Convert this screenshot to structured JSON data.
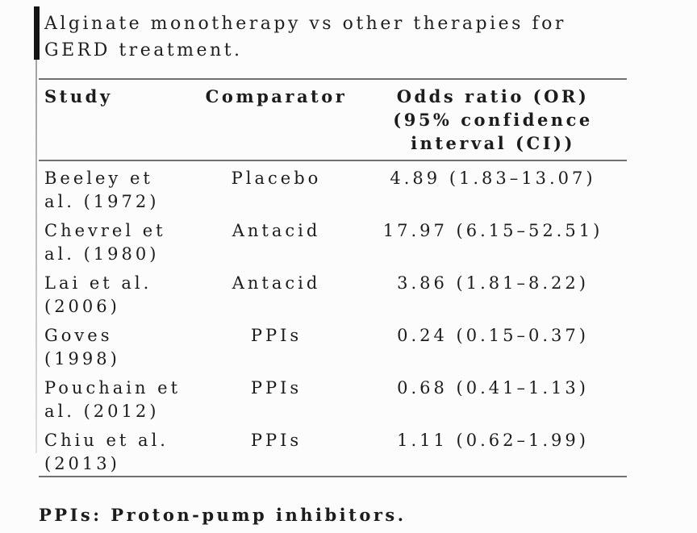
{
  "page": {
    "title_lines": [
      "Alginate monotherapy vs other therapies for",
      "GERD treatment."
    ],
    "footnote": "PPIs: Proton-pump inhibitors."
  },
  "table": {
    "columns": [
      {
        "label_lines": [
          "Study"
        ]
      },
      {
        "label_lines": [
          "Comparator"
        ]
      },
      {
        "label_lines": [
          "Odds ratio (OR)",
          "(95% confidence",
          "interval (CI))"
        ]
      }
    ],
    "rows": [
      {
        "study_lines": [
          "Beeley et",
          "al. (1972)"
        ],
        "comparator": "Placebo",
        "odds_ratio": "4.89 (1.83–13.07)"
      },
      {
        "study_lines": [
          "Chevrel et",
          "al. (1980)"
        ],
        "comparator": "Antacid",
        "odds_ratio": "17.97 (6.15–52.51)"
      },
      {
        "study_lines": [
          "Lai et al.",
          "(2006)"
        ],
        "comparator": "Antacid",
        "odds_ratio": "3.86 (1.81–8.22)"
      },
      {
        "study_lines": [
          "Goves",
          "(1998)"
        ],
        "comparator": "PPIs",
        "odds_ratio": "0.24 (0.15–0.37)"
      },
      {
        "study_lines": [
          "Pouchain et",
          "al. (2012)"
        ],
        "comparator": "PPIs",
        "odds_ratio": "0.68 (0.41–1.13)"
      },
      {
        "study_lines": [
          "Chiu et al.",
          "(2013)"
        ],
        "comparator": "PPIs",
        "odds_ratio": "1.11 (0.62–1.99)"
      }
    ]
  },
  "colors": {
    "text": "#1c1c1c",
    "rule": "#6f6f6f",
    "bar": "#141414"
  }
}
